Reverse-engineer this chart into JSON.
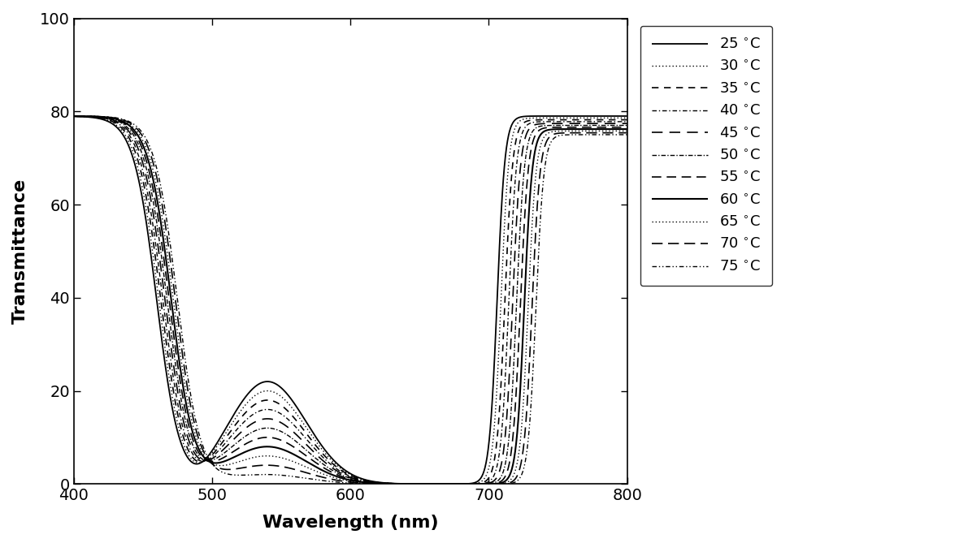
{
  "title": "",
  "xlabel": "Wavelength (nm)",
  "ylabel": "Transmittance",
  "xlim": [
    400,
    800
  ],
  "ylim": [
    0,
    100
  ],
  "xticks": [
    400,
    500,
    600,
    700,
    800
  ],
  "yticks": [
    0,
    20,
    40,
    60,
    80,
    100
  ],
  "temperatures": [
    25,
    30,
    35,
    40,
    45,
    50,
    55,
    60,
    65,
    70,
    75
  ],
  "linewidth": 1.2,
  "color": "#000000",
  "legend_fontsize": 13,
  "axis_label_fontsize": 16,
  "tick_fontsize": 14,
  "ls_map": {
    "25": [
      0,
      []
    ],
    "30": [
      0,
      [
        1,
        2
      ]
    ],
    "35": [
      0,
      [
        5,
        4
      ]
    ],
    "40": [
      0,
      [
        4,
        2,
        1,
        2
      ]
    ],
    "45": [
      0,
      [
        8,
        5
      ]
    ],
    "50": [
      0,
      [
        4,
        1.5,
        1,
        1.5
      ]
    ],
    "55": [
      0,
      [
        7,
        4
      ]
    ],
    "60": [
      0,
      []
    ],
    "65": [
      0,
      [
        1,
        2
      ]
    ],
    "70": [
      0,
      [
        8,
        4
      ]
    ],
    "75": [
      0,
      [
        4,
        2,
        1,
        2,
        1,
        2
      ]
    ]
  },
  "lw_map": {
    "25": 1.3,
    "30": 1.0,
    "35": 1.2,
    "40": 1.0,
    "45": 1.2,
    "50": 1.0,
    "55": 1.2,
    "60": 1.5,
    "65": 1.0,
    "70": 1.2,
    "75": 1.0
  }
}
